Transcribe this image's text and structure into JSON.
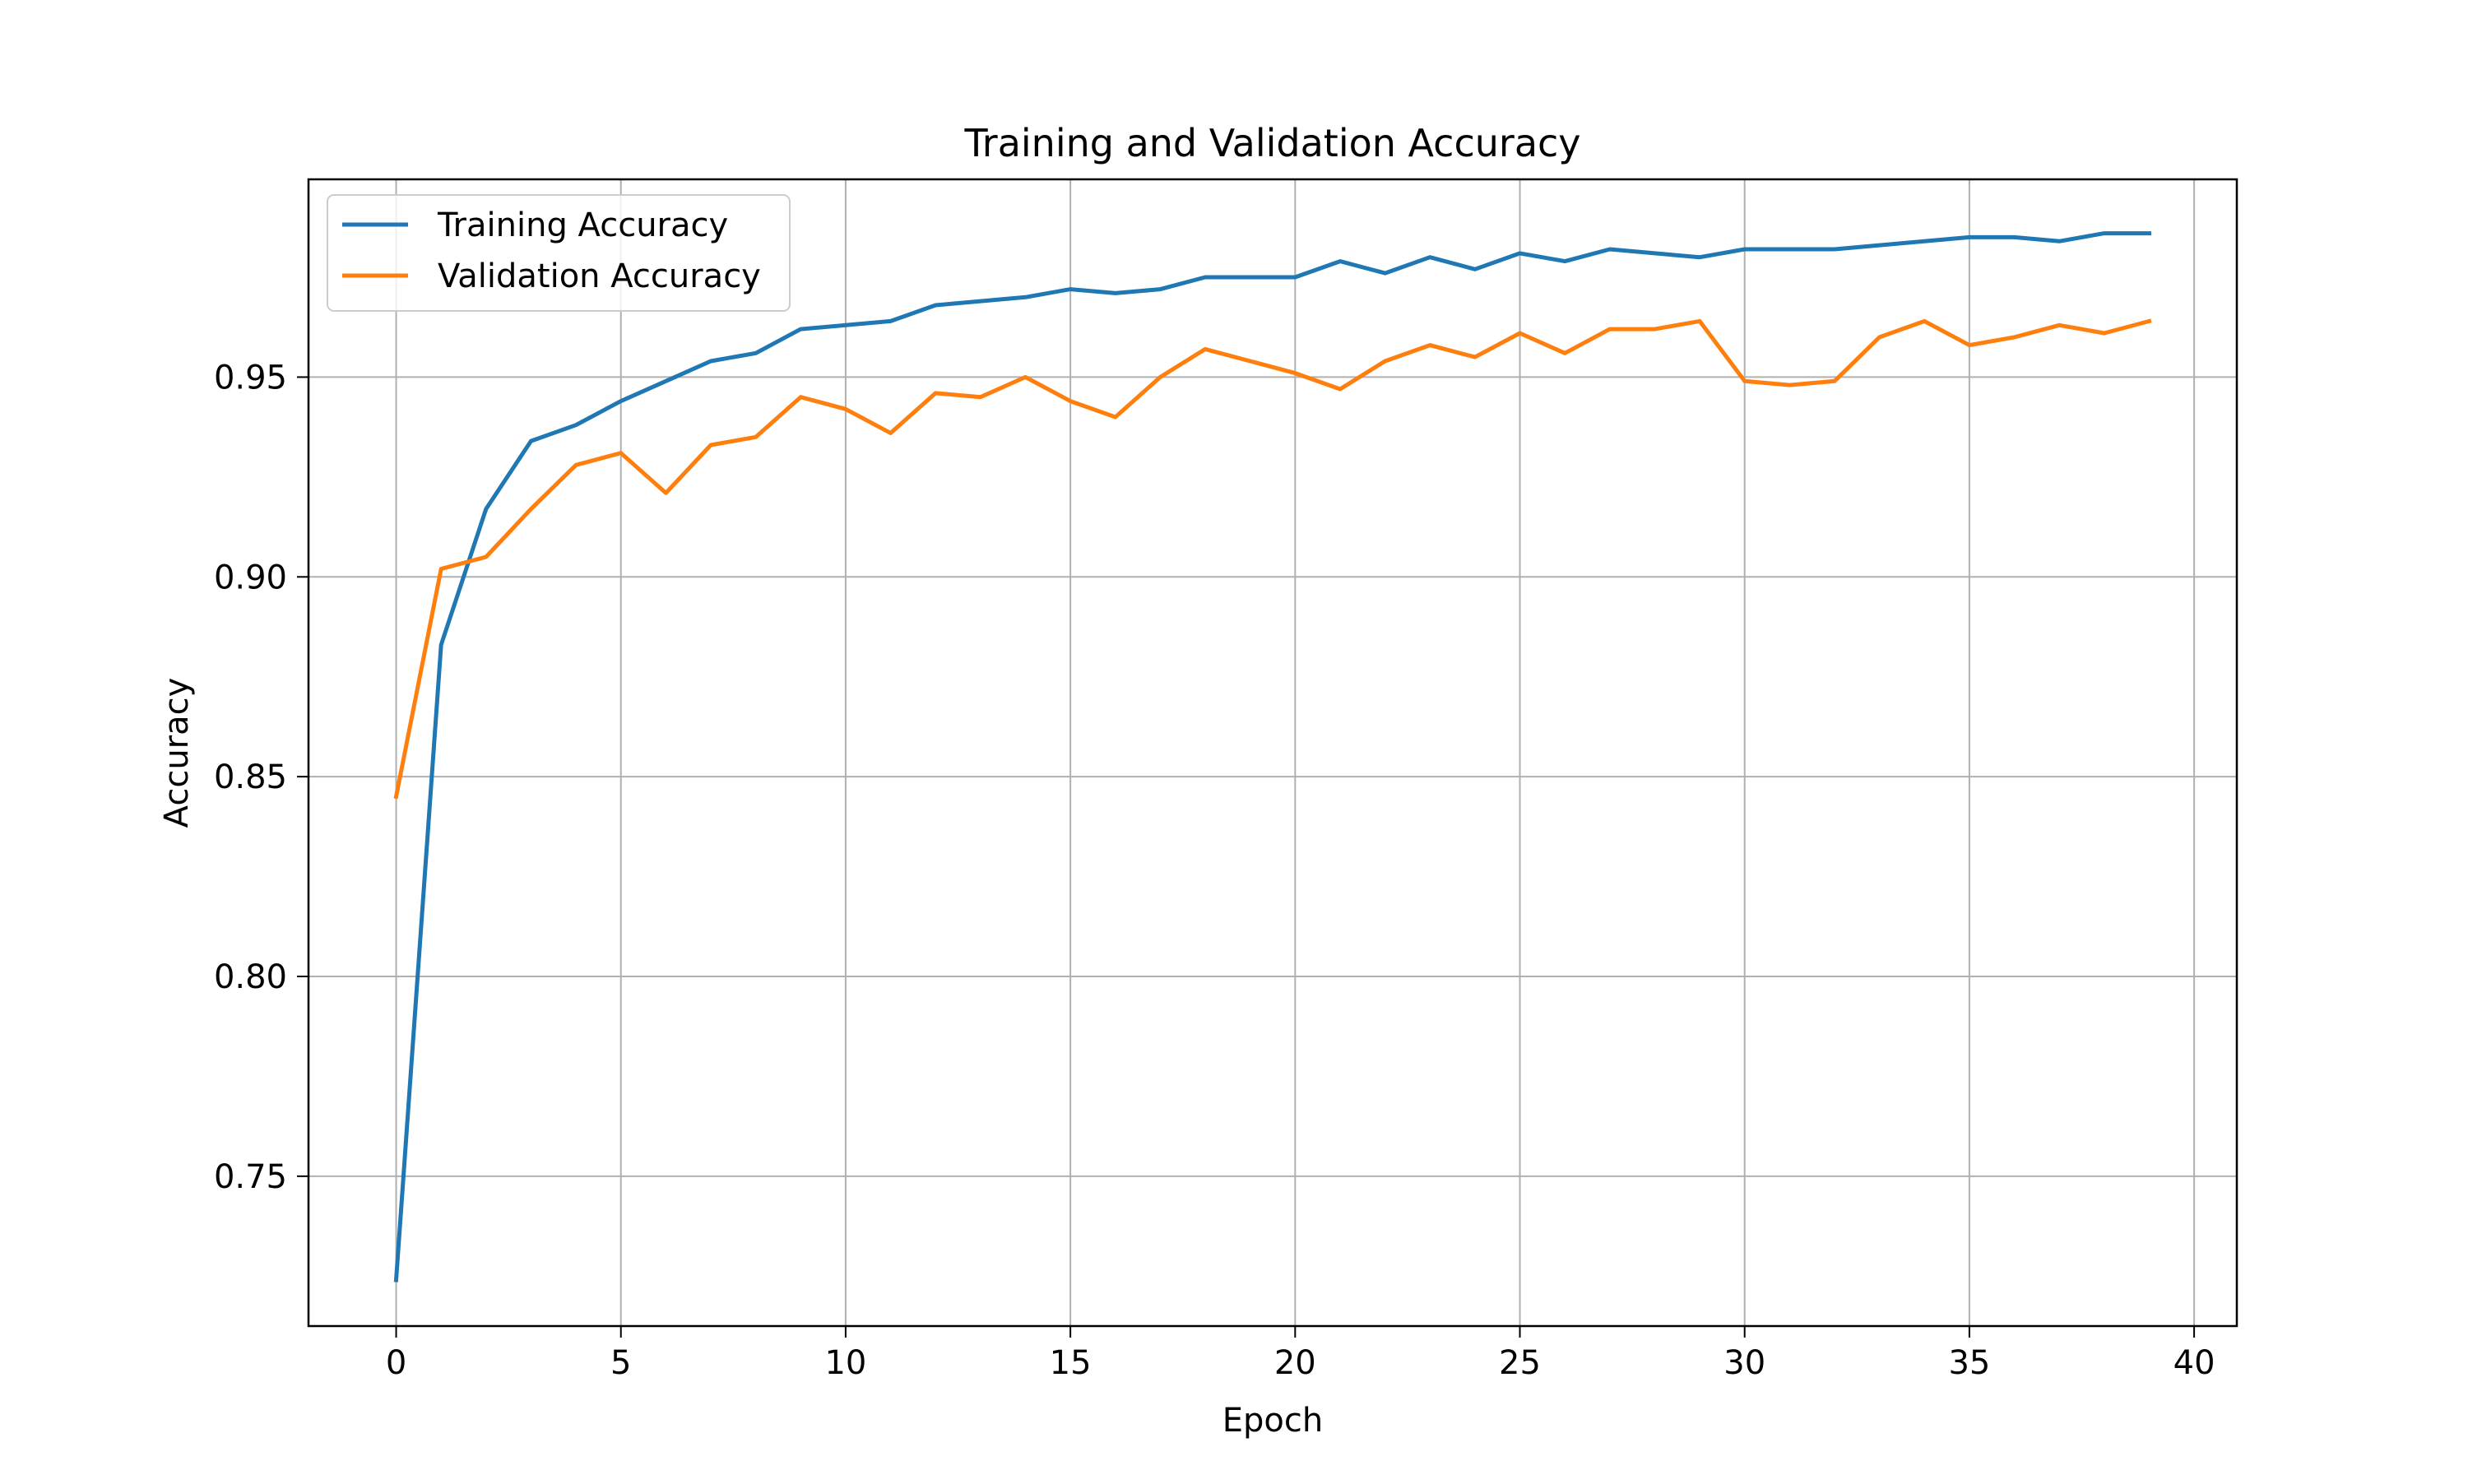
{
  "chart_data": {
    "type": "line",
    "title": "Training and Validation Accuracy",
    "xlabel": "Epoch",
    "ylabel": "Accuracy",
    "xlim": [
      -1.95,
      40.95
    ],
    "ylim": [
      0.7125,
      0.9995
    ],
    "xticks": [
      0,
      5,
      10,
      15,
      20,
      25,
      30,
      35,
      40
    ],
    "xtick_labels": [
      "0",
      "5",
      "10",
      "15",
      "20",
      "25",
      "30",
      "35",
      "40"
    ],
    "yticks": [
      0.75,
      0.8,
      0.85,
      0.9,
      0.95
    ],
    "ytick_labels": [
      "0.75",
      "0.80",
      "0.85",
      "0.90",
      "0.95"
    ],
    "grid": true,
    "legend_position": "upper-left",
    "x": [
      0,
      1,
      2,
      3,
      4,
      5,
      6,
      7,
      8,
      9,
      10,
      11,
      12,
      13,
      14,
      15,
      16,
      17,
      18,
      19,
      20,
      21,
      22,
      23,
      24,
      25,
      26,
      27,
      28,
      29,
      30,
      31,
      32,
      33,
      34,
      35,
      36,
      37,
      38,
      39
    ],
    "series": [
      {
        "name": "Training Accuracy",
        "color": "#1f77b4",
        "values": [
          0.724,
          0.883,
          0.917,
          0.934,
          0.938,
          0.944,
          0.949,
          0.954,
          0.956,
          0.962,
          0.963,
          0.964,
          0.968,
          0.969,
          0.97,
          0.972,
          0.971,
          0.972,
          0.975,
          0.975,
          0.975,
          0.979,
          0.976,
          0.98,
          0.977,
          0.981,
          0.979,
          0.982,
          0.981,
          0.98,
          0.982,
          0.982,
          0.982,
          0.983,
          0.984,
          0.985,
          0.985,
          0.984,
          0.986,
          0.986
        ]
      },
      {
        "name": "Validation Accuracy",
        "color": "#ff7f0e",
        "values": [
          0.845,
          0.902,
          0.905,
          0.917,
          0.928,
          0.931,
          0.921,
          0.933,
          0.935,
          0.945,
          0.942,
          0.936,
          0.946,
          0.945,
          0.95,
          0.944,
          0.94,
          0.95,
          0.957,
          0.954,
          0.951,
          0.947,
          0.954,
          0.958,
          0.955,
          0.961,
          0.956,
          0.962,
          0.962,
          0.964,
          0.949,
          0.948,
          0.949,
          0.96,
          0.964,
          0.958,
          0.96,
          0.963,
          0.961,
          0.964
        ]
      }
    ]
  }
}
